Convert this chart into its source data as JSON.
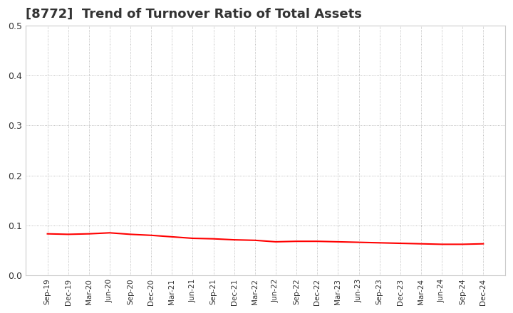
{
  "title": "[8772]  Trend of Turnover Ratio of Total Assets",
  "title_fontsize": 13,
  "title_fontweight": "bold",
  "title_color": "#333333",
  "line_color": "#FF0000",
  "line_width": 1.5,
  "background_color": "#FFFFFF",
  "grid_color": "#AAAAAA",
  "grid_color_major": "#999999",
  "ylim": [
    0.0,
    0.5
  ],
  "yticks": [
    0.0,
    0.1,
    0.2,
    0.3,
    0.4,
    0.5
  ],
  "x_labels": [
    "Sep-19",
    "Dec-19",
    "Mar-20",
    "Jun-20",
    "Sep-20",
    "Dec-20",
    "Mar-21",
    "Jun-21",
    "Sep-21",
    "Dec-21",
    "Mar-22",
    "Jun-22",
    "Sep-22",
    "Dec-22",
    "Mar-23",
    "Jun-23",
    "Sep-23",
    "Dec-23",
    "Mar-24",
    "Jun-24",
    "Sep-24",
    "Dec-24"
  ],
  "values": [
    0.083,
    0.082,
    0.083,
    0.085,
    0.082,
    0.08,
    0.077,
    0.074,
    0.073,
    0.071,
    0.07,
    0.067,
    0.068,
    0.068,
    0.067,
    0.066,
    0.065,
    0.064,
    0.063,
    0.062,
    0.062,
    0.063
  ]
}
